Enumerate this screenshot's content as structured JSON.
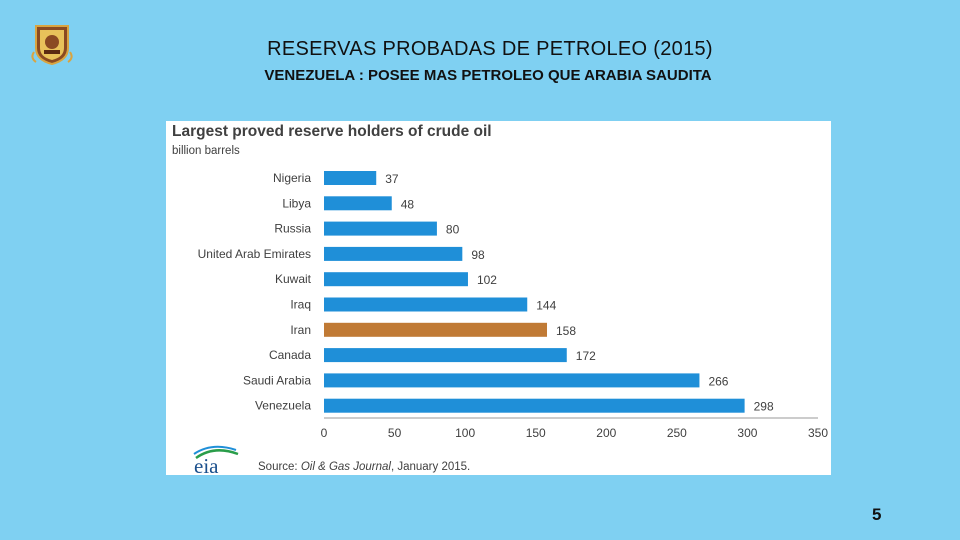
{
  "slide": {
    "title": "RESERVAS  PROBADAS  DE  PETROLEO (2015)",
    "subtitle": "VENEZUELA :  POSEE  MAS  PETROLEO  QUE  ARABIA  SAUDITA",
    "page_number": "5"
  },
  "source": {
    "prefix": "Source: ",
    "publication": "Oil & Gas Journal",
    "suffix": ", January 2015.",
    "logo_text": "eia"
  },
  "colors": {
    "bar": "#1f8fd8",
    "highlight": "#c07a35",
    "background": "#7fd0f2"
  },
  "chart_data": {
    "type": "bar",
    "orientation": "horizontal",
    "title": "Largest proved reserve holders of  crude oil",
    "subtitle": "billion barrels",
    "categories": [
      "Nigeria",
      "Libya",
      "Russia",
      "United Arab Emirates",
      "Kuwait",
      "Iraq",
      "Iran",
      "Canada",
      "Saudi Arabia",
      "Venezuela"
    ],
    "values": [
      37,
      48,
      80,
      98,
      102,
      144,
      158,
      172,
      266,
      298
    ],
    "highlight_category": "Iran",
    "xlim": [
      0,
      350
    ],
    "xticks": [
      0,
      50,
      100,
      150,
      200,
      250,
      300,
      350
    ],
    "grid": false,
    "legend": "none"
  }
}
